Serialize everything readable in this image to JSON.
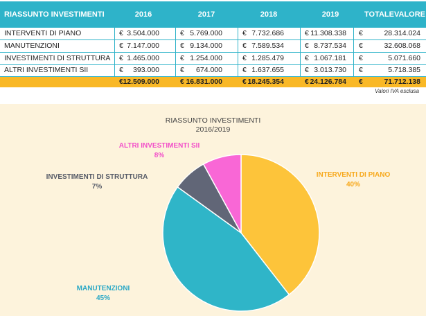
{
  "table": {
    "header": {
      "label": "RIASSUNTO INVESTIMENTI",
      "years": [
        "2016",
        "2017",
        "2018",
        "2019"
      ],
      "total_line1": "TOTALE",
      "total_line2": "VALORE"
    },
    "currency": "€",
    "rows": [
      {
        "label": "INTERVENTI DI PIANO",
        "values": [
          "3.504.000",
          "5.769.000",
          "7.732.686",
          "11.308.338"
        ],
        "total": "28.314.024"
      },
      {
        "label": "MANUTENZIONI",
        "values": [
          "7.147.000",
          "9.134.000",
          "7.589.534",
          "8.737.534"
        ],
        "total": "32.608.068"
      },
      {
        "label": "INVESTIMENTI DI STRUTTURA",
        "values": [
          "1.465.000",
          "1.254.000",
          "1.285.479",
          "1.067.181"
        ],
        "total": "5.071.660"
      },
      {
        "label": "ALTRI INVESTIMENTI SII",
        "values": [
          "393.000",
          "674.000",
          "1.637.655",
          "3.013.730"
        ],
        "total": "5.718.385"
      }
    ],
    "totals": {
      "values": [
        "12.509.000",
        "16.831.000",
        "18.245.354",
        "24.126.784"
      ],
      "total": "71.712.138"
    },
    "note": "Valori IVA esclusa"
  },
  "chart_data": {
    "type": "pie",
    "title": "RIASSUNTO INVESTIMENTI",
    "subtitle": "2016/2019",
    "slices": [
      {
        "label": "INTERVENTI DI PIANO",
        "percent_label": "40%",
        "value": 28314024,
        "color": "#fdc43a",
        "label_color": "#f7a81b"
      },
      {
        "label": "MANUTENZIONI",
        "percent_label": "45%",
        "value": 32608068,
        "color": "#2fb5c8",
        "label_color": "#2aa8c6"
      },
      {
        "label": "INVESTIMENTI DI STRUTTURA",
        "percent_label": "7%",
        "value": 5071660,
        "color": "#616677",
        "label_color": "#555a66"
      },
      {
        "label": "ALTRI INVESTIMENTI SII",
        "percent_label": "8%",
        "value": 5718385,
        "color": "#f967d6",
        "label_color": "#f24fc9"
      }
    ]
  },
  "colors": {
    "header_bg": "#2eb3c9",
    "total_bg": "#f9b826",
    "panel_bg": "#fdf3dc"
  }
}
